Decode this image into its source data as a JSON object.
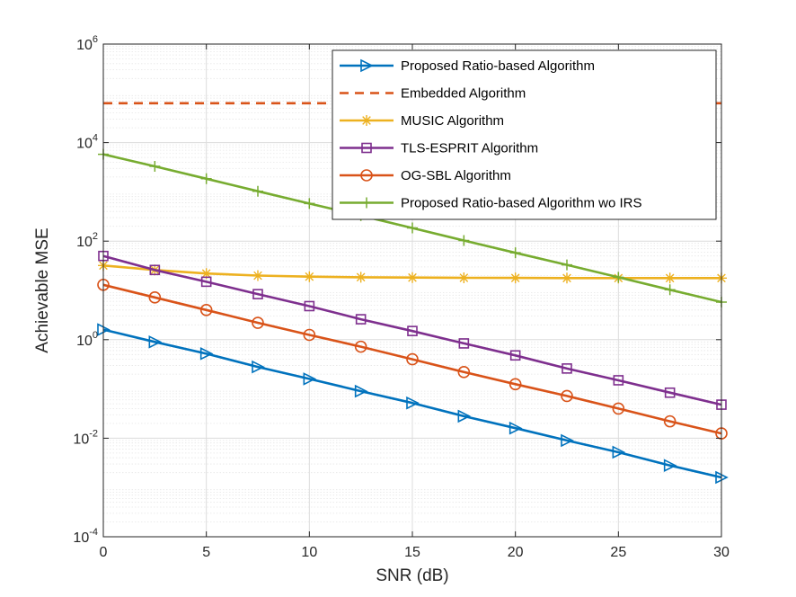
{
  "chart_data": {
    "type": "line",
    "xlabel": "SNR (dB)",
    "ylabel": "Achievable MSE",
    "xlim": [
      0,
      30
    ],
    "ylim_log10": [
      -4,
      6
    ],
    "y_scale": "log",
    "x_ticks": [
      0,
      5,
      10,
      15,
      20,
      25,
      30
    ],
    "y_ticks": [
      {
        "base": "10",
        "exp": "-4",
        "value": 0.0001
      },
      {
        "base": "10",
        "exp": "-2",
        "value": 0.01
      },
      {
        "base": "10",
        "exp": "0",
        "value": 1
      },
      {
        "base": "10",
        "exp": "2",
        "value": 100
      },
      {
        "base": "10",
        "exp": "4",
        "value": 10000
      },
      {
        "base": "10",
        "exp": "6",
        "value": 1000000
      }
    ],
    "grid": true,
    "minor_grid": true,
    "legend_position": "top-right",
    "x": [
      0,
      2.5,
      5,
      7.5,
      10,
      12.5,
      15,
      17.5,
      20,
      22.5,
      25,
      27.5,
      30
    ],
    "series": [
      {
        "name": "Proposed Ratio-based Algorithm",
        "color": "#0072BD",
        "marker": "triangle-right",
        "dash": "solid",
        "values": [
          1.6,
          0.9,
          0.52,
          0.28,
          0.16,
          0.09,
          0.052,
          0.028,
          0.016,
          0.009,
          0.0052,
          0.0028,
          0.0016
        ]
      },
      {
        "name": "Embedded Algorithm",
        "color": "#D95319",
        "marker": "none",
        "dash": "dashed",
        "values": [
          63000,
          63000,
          63000,
          63000,
          63000,
          63000,
          63000,
          63000,
          63000,
          63000,
          63000,
          63000,
          63000
        ]
      },
      {
        "name": "MUSIC Algorithm",
        "color": "#EDB120",
        "marker": "asterisk",
        "dash": "solid",
        "values": [
          32,
          26,
          22,
          20,
          19,
          18.5,
          18.2,
          18,
          17.9,
          17.8,
          17.8,
          17.8,
          17.8
        ]
      },
      {
        "name": "TLS-ESPRIT Algorithm",
        "color": "#7E2F8E",
        "marker": "square",
        "dash": "solid",
        "values": [
          50,
          26,
          15,
          8.4,
          4.8,
          2.6,
          1.5,
          0.84,
          0.48,
          0.26,
          0.15,
          0.084,
          0.048
        ]
      },
      {
        "name": "OG-SBL Algorithm",
        "color": "#D95319",
        "marker": "circle",
        "dash": "solid",
        "values": [
          13,
          7.2,
          4.0,
          2.2,
          1.25,
          0.72,
          0.4,
          0.22,
          0.125,
          0.072,
          0.04,
          0.022,
          0.0125
        ]
      },
      {
        "name": "Proposed Ratio-based Algorithm wo IRS",
        "color": "#77AC30",
        "marker": "plus",
        "dash": "solid",
        "values": [
          5800,
          3300,
          1850,
          1030,
          580,
          330,
          185,
          103,
          58,
          33,
          18.5,
          10.3,
          5.8
        ]
      }
    ]
  }
}
